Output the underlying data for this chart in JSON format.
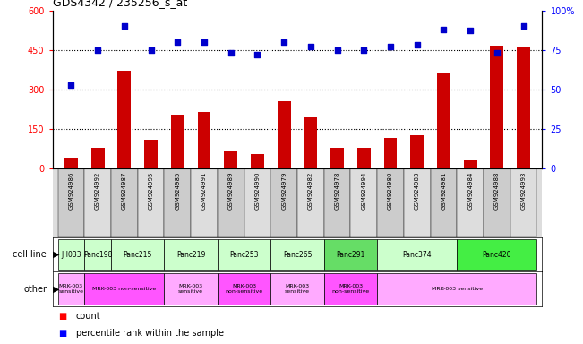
{
  "title": "GDS4342 / 235256_s_at",
  "gsm_ids": [
    "GSM924986",
    "GSM924992",
    "GSM924987",
    "GSM924995",
    "GSM924985",
    "GSM924991",
    "GSM924989",
    "GSM924990",
    "GSM924979",
    "GSM924982",
    "GSM924978",
    "GSM924994",
    "GSM924980",
    "GSM924983",
    "GSM924981",
    "GSM924984",
    "GSM924988",
    "GSM924993"
  ],
  "counts": [
    40,
    80,
    370,
    110,
    205,
    215,
    65,
    55,
    255,
    195,
    80,
    80,
    115,
    125,
    360,
    30,
    465,
    460
  ],
  "percentile_ranks": [
    53,
    75,
    90,
    75,
    80,
    80,
    73,
    72,
    80,
    77,
    75,
    75,
    77,
    78,
    88,
    87,
    73,
    90
  ],
  "cell_lines": [
    {
      "label": "JH033",
      "start": 0,
      "end": 1,
      "color": "#ccffcc"
    },
    {
      "label": "Panc198",
      "start": 1,
      "end": 2,
      "color": "#ccffcc"
    },
    {
      "label": "Panc215",
      "start": 2,
      "end": 4,
      "color": "#ccffcc"
    },
    {
      "label": "Panc219",
      "start": 4,
      "end": 6,
      "color": "#ccffcc"
    },
    {
      "label": "Panc253",
      "start": 6,
      "end": 8,
      "color": "#ccffcc"
    },
    {
      "label": "Panc265",
      "start": 8,
      "end": 10,
      "color": "#ccffcc"
    },
    {
      "label": "Panc291",
      "start": 10,
      "end": 12,
      "color": "#66dd66"
    },
    {
      "label": "Panc374",
      "start": 12,
      "end": 15,
      "color": "#ccffcc"
    },
    {
      "label": "Panc420",
      "start": 15,
      "end": 18,
      "color": "#44ee44"
    }
  ],
  "other_groups": [
    {
      "label": "MRK-003\nsensitive",
      "start": 0,
      "end": 1,
      "color": "#ffaaff"
    },
    {
      "label": "MRK-003 non-sensitive",
      "start": 1,
      "end": 4,
      "color": "#ff55ff"
    },
    {
      "label": "MRK-003\nsensitive",
      "start": 4,
      "end": 6,
      "color": "#ffaaff"
    },
    {
      "label": "MRK-003\nnon-sensitive",
      "start": 6,
      "end": 8,
      "color": "#ff55ff"
    },
    {
      "label": "MRK-003\nsensitive",
      "start": 8,
      "end": 10,
      "color": "#ffaaff"
    },
    {
      "label": "MRK-003\nnon-sensitive",
      "start": 10,
      "end": 12,
      "color": "#ff55ff"
    },
    {
      "label": "MRK-003 sensitive",
      "start": 12,
      "end": 18,
      "color": "#ffaaff"
    }
  ],
  "bar_color": "#cc0000",
  "dot_color": "#0000cc",
  "ylim_left": [
    0,
    600
  ],
  "ylim_right": [
    0,
    100
  ],
  "yticks_left": [
    0,
    150,
    300,
    450,
    600
  ],
  "ytick_labels_left": [
    "0",
    "150",
    "300",
    "450",
    "600"
  ],
  "yticks_right": [
    0,
    25,
    50,
    75,
    100
  ],
  "ytick_labels_right": [
    "0",
    "25",
    "50",
    "75",
    "100%"
  ],
  "hlines": [
    150,
    300,
    450
  ],
  "bar_width": 0.5,
  "gsm_col_bg": "#dddddd",
  "cell_line_label": "cell line",
  "other_label": "other",
  "legend_count": "count",
  "legend_pct": "percentile rank within the sample"
}
